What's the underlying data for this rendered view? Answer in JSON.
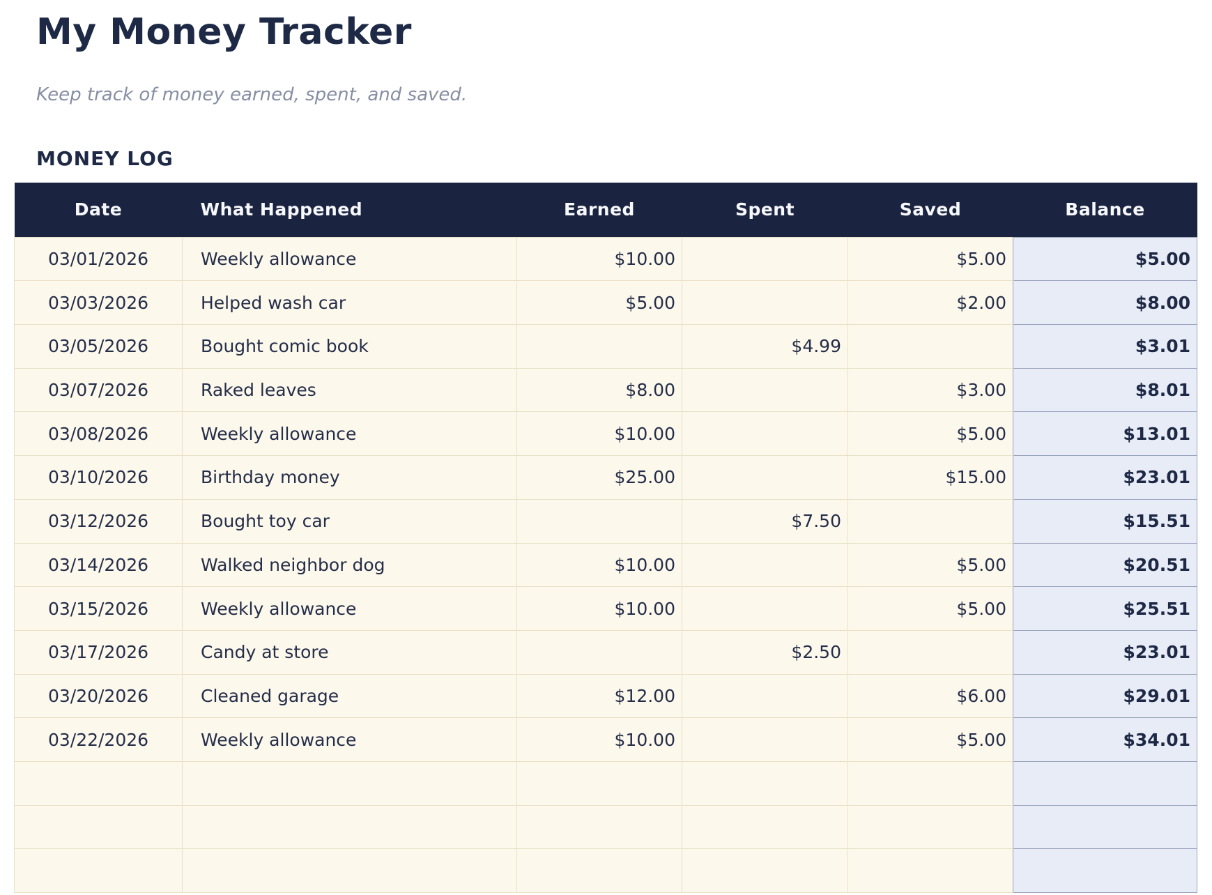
{
  "page": {
    "title": "My Money Tracker",
    "subtitle": "Keep track of money earned, spent, and saved.",
    "section_title": "MONEY LOG"
  },
  "colors": {
    "navy": "#1a2340",
    "cream": "#fcf8eb",
    "tan": "#e8e1c7",
    "balbg": "#e8ecf7",
    "balborder": "#9aa3bd",
    "ink": "#242d49",
    "sub": "#868ea3"
  },
  "table": {
    "columns": [
      {
        "key": "date",
        "label": "Date"
      },
      {
        "key": "event",
        "label": "What Happened"
      },
      {
        "key": "earned",
        "label": "Earned"
      },
      {
        "key": "spent",
        "label": "Spent"
      },
      {
        "key": "saved",
        "label": "Saved"
      },
      {
        "key": "balance",
        "label": "Balance"
      }
    ],
    "rows": [
      {
        "date": "03/01/2026",
        "event": "Weekly allowance",
        "earned": "$10.00",
        "spent": "",
        "saved": "$5.00",
        "balance": "$5.00"
      },
      {
        "date": "03/03/2026",
        "event": "Helped wash car",
        "earned": "$5.00",
        "spent": "",
        "saved": "$2.00",
        "balance": "$8.00"
      },
      {
        "date": "03/05/2026",
        "event": "Bought comic book",
        "earned": "",
        "spent": "$4.99",
        "saved": "",
        "balance": "$3.01"
      },
      {
        "date": "03/07/2026",
        "event": "Raked leaves",
        "earned": "$8.00",
        "spent": "",
        "saved": "$3.00",
        "balance": "$8.01"
      },
      {
        "date": "03/08/2026",
        "event": "Weekly allowance",
        "earned": "$10.00",
        "spent": "",
        "saved": "$5.00",
        "balance": "$13.01"
      },
      {
        "date": "03/10/2026",
        "event": "Birthday money",
        "earned": "$25.00",
        "spent": "",
        "saved": "$15.00",
        "balance": "$23.01"
      },
      {
        "date": "03/12/2026",
        "event": "Bought toy car",
        "earned": "",
        "spent": "$7.50",
        "saved": "",
        "balance": "$15.51"
      },
      {
        "date": "03/14/2026",
        "event": "Walked neighbor dog",
        "earned": "$10.00",
        "spent": "",
        "saved": "$5.00",
        "balance": "$20.51"
      },
      {
        "date": "03/15/2026",
        "event": "Weekly allowance",
        "earned": "$10.00",
        "spent": "",
        "saved": "$5.00",
        "balance": "$25.51"
      },
      {
        "date": "03/17/2026",
        "event": "Candy at store",
        "earned": "",
        "spent": "$2.50",
        "saved": "",
        "balance": "$23.01"
      },
      {
        "date": "03/20/2026",
        "event": "Cleaned garage",
        "earned": "$12.00",
        "spent": "",
        "saved": "$6.00",
        "balance": "$29.01"
      },
      {
        "date": "03/22/2026",
        "event": "Weekly allowance",
        "earned": "$10.00",
        "spent": "",
        "saved": "$5.00",
        "balance": "$34.01"
      }
    ],
    "empty_row_count": 3
  }
}
